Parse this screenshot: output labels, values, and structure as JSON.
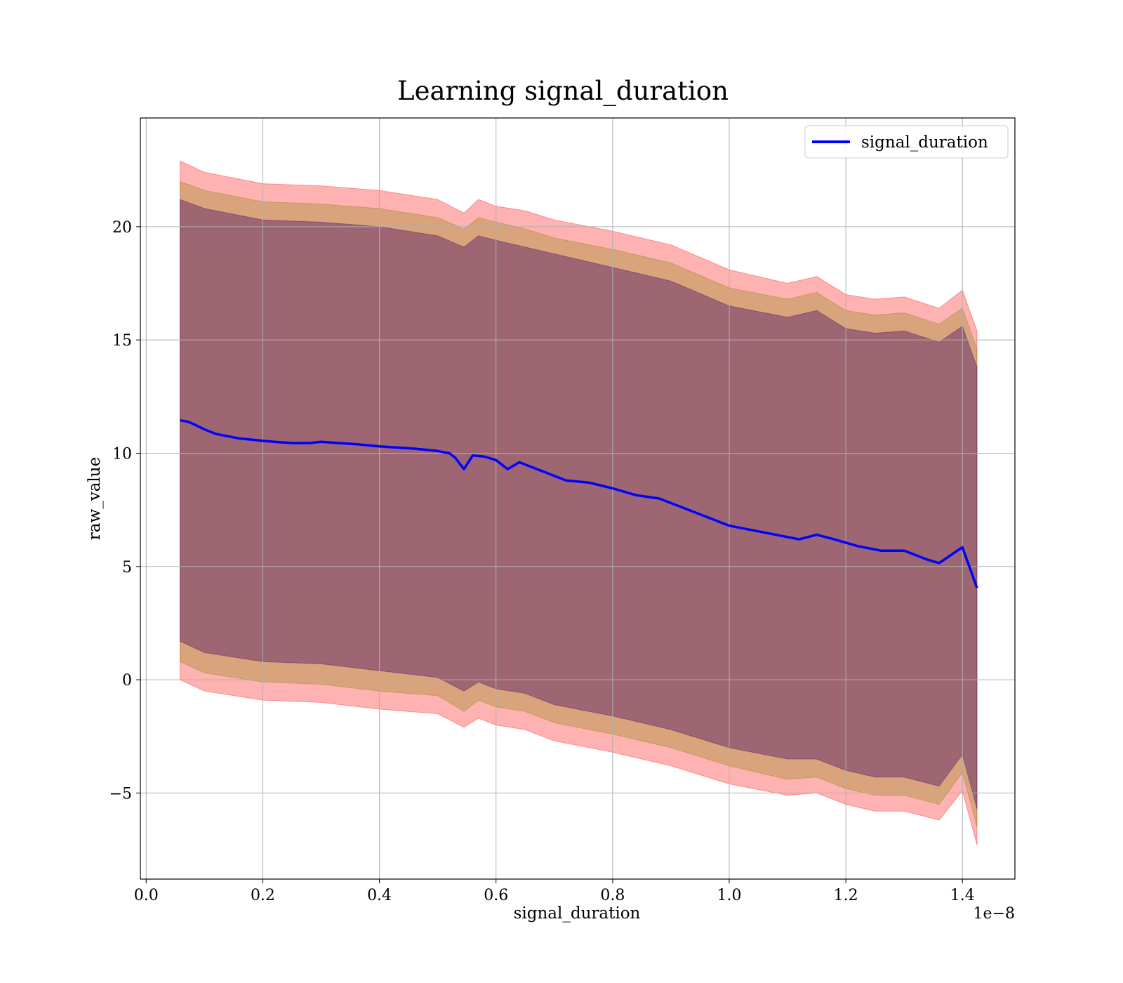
{
  "chart_data": {
    "type": "line",
    "title": "Learning signal_duration",
    "xlabel": "signal_duration",
    "ylabel": "raw_value",
    "x_offset_label": "1e−8",
    "xlim": [
      -0.01,
      1.49
    ],
    "ylim": [
      -8.8,
      24.8
    ],
    "x_ticks": [
      0.0,
      0.2,
      0.4,
      0.6,
      0.8,
      1.0,
      1.2,
      1.4
    ],
    "x_tick_labels": [
      "0.0",
      "0.2",
      "0.4",
      "0.6",
      "0.8",
      "1.0",
      "1.2",
      "1.4"
    ],
    "y_ticks": [
      -5,
      0,
      5,
      10,
      15,
      20
    ],
    "y_tick_labels": [
      "−5",
      "0",
      "5",
      "10",
      "15",
      "20"
    ],
    "grid": true,
    "legend": {
      "position": "top-right",
      "entries": [
        "signal_duration"
      ]
    },
    "series": [
      {
        "name": "signal_duration",
        "color": "#0000ff",
        "x": [
          0.058,
          0.07,
          0.08,
          0.1,
          0.12,
          0.14,
          0.16,
          0.18,
          0.2,
          0.22,
          0.25,
          0.28,
          0.3,
          0.33,
          0.36,
          0.4,
          0.43,
          0.46,
          0.5,
          0.52,
          0.53,
          0.545,
          0.56,
          0.58,
          0.6,
          0.62,
          0.64,
          0.66,
          0.68,
          0.72,
          0.76,
          0.8,
          0.84,
          0.88,
          0.92,
          0.96,
          1.0,
          1.04,
          1.08,
          1.12,
          1.15,
          1.18,
          1.22,
          1.26,
          1.3,
          1.34,
          1.36,
          1.4,
          1.425
        ],
        "values": [
          11.45,
          11.4,
          11.3,
          11.05,
          10.85,
          10.75,
          10.65,
          10.6,
          10.55,
          10.5,
          10.45,
          10.45,
          10.5,
          10.45,
          10.4,
          10.3,
          10.25,
          10.2,
          10.1,
          10.0,
          9.8,
          9.3,
          9.9,
          9.85,
          9.7,
          9.3,
          9.6,
          9.4,
          9.2,
          8.8,
          8.7,
          8.45,
          8.15,
          8.0,
          7.6,
          7.2,
          6.8,
          6.6,
          6.4,
          6.2,
          6.4,
          6.2,
          5.9,
          5.7,
          5.7,
          5.3,
          5.15,
          5.85,
          4.05
        ]
      }
    ],
    "bands": [
      {
        "color": "#ff0000",
        "opacity": 0.3,
        "x": [
          0.058,
          0.1,
          0.2,
          0.3,
          0.4,
          0.5,
          0.545,
          0.57,
          0.6,
          0.65,
          0.7,
          0.8,
          0.9,
          1.0,
          1.1,
          1.15,
          1.2,
          1.25,
          1.3,
          1.36,
          1.4,
          1.425
        ],
        "upper": [
          22.9,
          22.4,
          21.9,
          21.8,
          21.6,
          21.2,
          20.6,
          21.2,
          20.9,
          20.7,
          20.3,
          19.8,
          19.2,
          18.1,
          17.5,
          17.8,
          17.0,
          16.8,
          16.9,
          16.4,
          17.2,
          15.4
        ],
        "lower": [
          0.0,
          -0.5,
          -0.9,
          -1.0,
          -1.3,
          -1.5,
          -2.1,
          -1.7,
          -2.0,
          -2.2,
          -2.7,
          -3.2,
          -3.8,
          -4.6,
          -5.1,
          -5.0,
          -5.5,
          -5.8,
          -5.8,
          -6.2,
          -4.9,
          -7.3
        ]
      },
      {
        "color": "#808000",
        "opacity": 0.3,
        "x": [
          0.058,
          0.1,
          0.2,
          0.3,
          0.4,
          0.5,
          0.545,
          0.57,
          0.6,
          0.65,
          0.7,
          0.8,
          0.9,
          1.0,
          1.1,
          1.15,
          1.2,
          1.25,
          1.3,
          1.36,
          1.4,
          1.425
        ],
        "upper": [
          22.0,
          21.6,
          21.1,
          21.0,
          20.8,
          20.4,
          19.9,
          20.4,
          20.2,
          19.9,
          19.5,
          19.0,
          18.4,
          17.3,
          16.8,
          17.1,
          16.3,
          16.1,
          16.2,
          15.7,
          16.4,
          14.6
        ],
        "lower": [
          0.8,
          0.3,
          -0.1,
          -0.2,
          -0.5,
          -0.7,
          -1.4,
          -0.9,
          -1.2,
          -1.4,
          -1.9,
          -2.4,
          -3.0,
          -3.8,
          -4.4,
          -4.3,
          -4.8,
          -5.1,
          -5.1,
          -5.5,
          -4.1,
          -6.5
        ]
      },
      {
        "color": "#400060",
        "opacity": 0.38,
        "x": [
          0.058,
          0.1,
          0.2,
          0.3,
          0.4,
          0.5,
          0.545,
          0.57,
          0.6,
          0.65,
          0.7,
          0.8,
          0.9,
          1.0,
          1.1,
          1.15,
          1.2,
          1.25,
          1.3,
          1.36,
          1.4,
          1.425
        ],
        "upper": [
          21.2,
          20.8,
          20.3,
          20.2,
          20.0,
          19.6,
          19.1,
          19.6,
          19.4,
          19.1,
          18.8,
          18.2,
          17.6,
          16.5,
          16.0,
          16.3,
          15.5,
          15.3,
          15.4,
          14.9,
          15.6,
          13.8
        ],
        "lower": [
          1.7,
          1.2,
          0.8,
          0.7,
          0.4,
          0.1,
          -0.5,
          -0.1,
          -0.4,
          -0.6,
          -1.1,
          -1.6,
          -2.2,
          -3.0,
          -3.5,
          -3.5,
          -4.0,
          -4.3,
          -4.3,
          -4.7,
          -3.3,
          -5.7
        ]
      }
    ]
  }
}
